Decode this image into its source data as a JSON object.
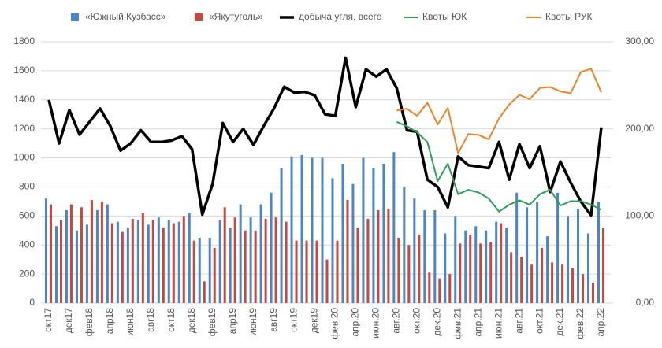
{
  "chart_data": {
    "type": "bar",
    "categories": [
      "окт17",
      null,
      "дек17",
      null,
      "фев18",
      null,
      "апр18",
      null,
      "июн18",
      null,
      "авг18",
      null,
      "окт18",
      null,
      "дек18",
      null,
      "фев19",
      null,
      "апр19",
      null,
      "июн19",
      null,
      "авг19",
      null,
      "окт19",
      null,
      "дек19",
      null,
      "фев.20",
      null,
      "апр.20",
      null,
      "июн.20",
      null,
      "авг.20",
      null,
      "окт.20",
      null,
      "дек.20",
      null,
      "фев.21",
      null,
      "апр.21",
      null,
      "июн.21",
      null,
      "авг.21",
      null,
      "окт.21",
      null,
      "дек.21",
      null,
      "фев.22",
      null,
      "апр.22"
    ],
    "series": [
      {
        "name": "«Южный Кузбасс»",
        "type": "bar",
        "color": "#4a86c8",
        "values": [
          720,
          530,
          640,
          500,
          540,
          640,
          680,
          560,
          520,
          570,
          540,
          590,
          570,
          560,
          620,
          450,
          450,
          570,
          520,
          680,
          590,
          680,
          760,
          930,
          1010,
          1020,
          1000,
          1000,
          860,
          960,
          820,
          1000,
          930,
          960,
          1040,
          800,
          720,
          640,
          640,
          480,
          600,
          500,
          530,
          500,
          560,
          520,
          760,
          660,
          700,
          460,
          760,
          600,
          650,
          480,
          700
        ]
      },
      {
        "name": "«Якутуголь»",
        "type": "bar",
        "color": "#c9473d",
        "values": [
          680,
          570,
          680,
          660,
          710,
          700,
          550,
          490,
          580,
          620,
          570,
          520,
          550,
          600,
          430,
          150,
          380,
          660,
          590,
          500,
          500,
          580,
          590,
          560,
          430,
          430,
          430,
          300,
          430,
          710,
          520,
          580,
          640,
          650,
          450,
          400,
          470,
          210,
          170,
          200,
          410,
          470,
          410,
          420,
          550,
          350,
          320,
          270,
          380,
          280,
          270,
          240,
          200,
          140,
          520
        ]
      },
      {
        "name": "добыча угля, всего",
        "type": "line",
        "color": "#000000",
        "values": [
          1400,
          1100,
          1330,
          1160,
          1250,
          1340,
          1220,
          1050,
          1100,
          1190,
          1110,
          1110,
          1120,
          1150,
          1060,
          610,
          820,
          1240,
          1110,
          1200,
          1090,
          1220,
          1340,
          1490,
          1450,
          1455,
          1430,
          1300,
          1290,
          1690,
          1350,
          1610,
          1560,
          1610,
          1480,
          1190,
          1180,
          850,
          800,
          660,
          1010,
          950,
          940,
          930,
          1110,
          850,
          1095,
          930,
          1080,
          765,
          975,
          830,
          700,
          605,
          1210
        ]
      },
      {
        "name": "Квоты ЮК",
        "type": "line",
        "axis": "y2",
        "color": "#2e9e5b",
        "values": [
          null,
          null,
          null,
          null,
          null,
          null,
          null,
          null,
          null,
          null,
          null,
          null,
          null,
          null,
          null,
          null,
          null,
          null,
          null,
          null,
          null,
          null,
          null,
          null,
          null,
          null,
          null,
          null,
          null,
          null,
          null,
          null,
          null,
          null,
          208,
          203,
          196,
          185,
          140,
          160,
          125,
          130,
          127,
          120,
          105,
          113,
          118,
          113,
          125,
          130,
          112,
          117,
          117,
          113,
          107
        ]
      },
      {
        "name": "Квоты РУК",
        "type": "line",
        "axis": "y2",
        "color": "#e8852a",
        "values": [
          null,
          null,
          null,
          null,
          null,
          null,
          null,
          null,
          null,
          null,
          null,
          null,
          null,
          null,
          null,
          null,
          null,
          null,
          null,
          null,
          null,
          null,
          null,
          null,
          null,
          null,
          null,
          null,
          null,
          null,
          null,
          null,
          null,
          null,
          221,
          223,
          215,
          230,
          205,
          224,
          172,
          194,
          193,
          188,
          212,
          228,
          239,
          234,
          247,
          248,
          243,
          241,
          265,
          269,
          242
        ]
      }
    ],
    "ylim": [
      0,
      1800
    ],
    "yticks": [
      0,
      200,
      400,
      600,
      800,
      1000,
      1200,
      1400,
      1600,
      1800
    ],
    "y2lim": [
      0,
      300
    ],
    "y2ticks": [
      {
        "value": 0,
        "label": "0,00"
      },
      {
        "value": 100,
        "label": "100,00"
      },
      {
        "value": 200,
        "label": "200,00"
      },
      {
        "value": 300,
        "label": "300,00"
      }
    ],
    "grid": true,
    "legend": "top"
  }
}
